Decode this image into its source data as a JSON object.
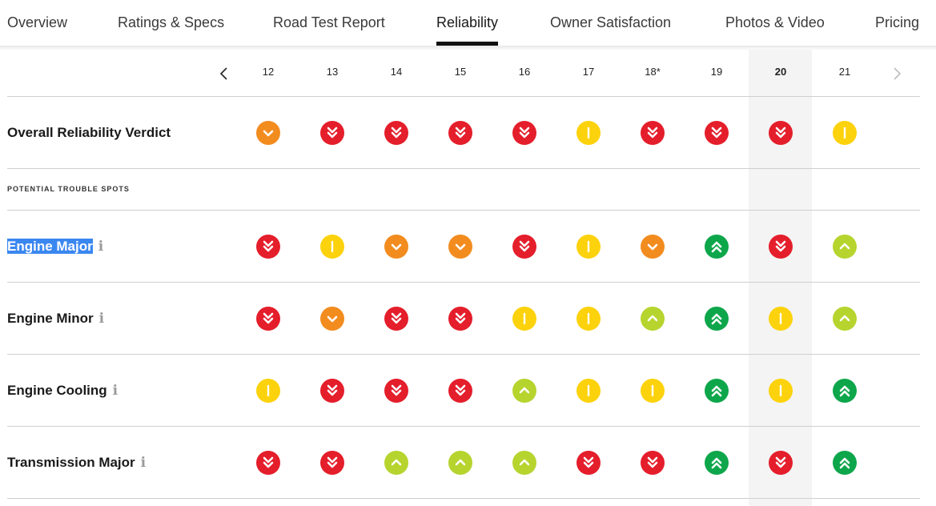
{
  "nav": {
    "tabs": [
      {
        "label": "Overview",
        "active": false
      },
      {
        "label": "Ratings & Specs",
        "active": false
      },
      {
        "label": "Road Test Report",
        "active": false
      },
      {
        "label": "Reliability",
        "active": true
      },
      {
        "label": "Owner Satisfaction",
        "active": false
      },
      {
        "label": "Photos & Video",
        "active": false
      },
      {
        "label": "Pricing",
        "active": false
      }
    ]
  },
  "years": [
    "12",
    "13",
    "14",
    "15",
    "16",
    "17",
    "18*",
    "19",
    "20",
    "21"
  ],
  "selected_year": "20",
  "colors": {
    "much_worse": "#e41e2b",
    "worse": "#f28c1f",
    "average": "#fcd20c",
    "better": "#b6d42e",
    "much_better": "#0ea64b"
  },
  "overall": {
    "label": "Overall Reliability Verdict",
    "ratings": [
      "worse",
      "much_worse",
      "much_worse",
      "much_worse",
      "much_worse",
      "average",
      "much_worse",
      "much_worse",
      "much_worse",
      "average"
    ]
  },
  "section_label": "POTENTIAL TROUBLE SPOTS",
  "trouble_spots": [
    {
      "label": "Engine Major",
      "info": "i",
      "selected": true,
      "ratings": [
        "much_worse",
        "average",
        "worse",
        "worse",
        "much_worse",
        "average",
        "worse",
        "much_better",
        "much_worse",
        "better"
      ]
    },
    {
      "label": "Engine Minor",
      "info": "i",
      "selected": false,
      "ratings": [
        "much_worse",
        "worse",
        "much_worse",
        "much_worse",
        "average",
        "average",
        "better",
        "much_better",
        "average",
        "better"
      ]
    },
    {
      "label": "Engine Cooling",
      "info": "i",
      "selected": false,
      "ratings": [
        "average",
        "much_worse",
        "much_worse",
        "much_worse",
        "better",
        "average",
        "average",
        "much_better",
        "average",
        "much_better"
      ]
    },
    {
      "label": "Transmission Major",
      "info": "i",
      "selected": false,
      "ratings": [
        "much_worse",
        "much_worse",
        "better",
        "better",
        "better",
        "much_worse",
        "much_worse",
        "much_better",
        "much_worse",
        "much_better"
      ]
    }
  ],
  "icons": {
    "prev": "chevron-left-icon",
    "next": "chevron-right-icon",
    "much_worse": "double-chevron-down-icon",
    "worse": "chevron-down-icon",
    "average": "vertical-bar-icon",
    "better": "chevron-up-icon",
    "much_better": "double-chevron-up-icon"
  }
}
